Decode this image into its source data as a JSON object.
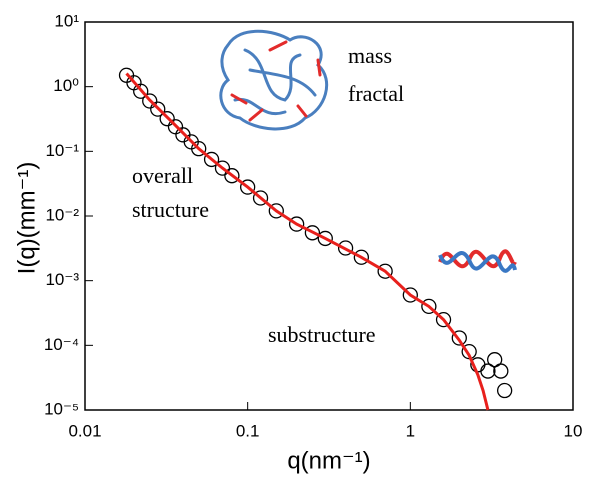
{
  "chart_data": {
    "type": "scatter",
    "x_label": "q(nm⁻¹)",
    "y_label": "I(q)(mm⁻¹)",
    "annotations": [
      "mass",
      "fractal",
      "overall",
      "structure",
      "substructure"
    ],
    "x_scale": "log",
    "y_scale": "log",
    "xlim": [
      0.01,
      10
    ],
    "ylim": [
      1e-05,
      10
    ],
    "xticks": [
      0.01,
      0.1,
      1,
      10
    ],
    "yticks": [
      {
        "value": 1e-05,
        "label": "10⁻⁵"
      },
      {
        "value": 0.0001,
        "label": "10⁻⁴"
      },
      {
        "value": 0.001,
        "label": "10⁻³"
      },
      {
        "value": 0.01,
        "label": "10⁻²"
      },
      {
        "value": 0.1,
        "label": "10⁻¹"
      },
      {
        "value": 1,
        "label": "10⁰"
      },
      {
        "value": 10,
        "label": "10¹"
      }
    ],
    "series": [
      {
        "type": "scatter",
        "color": "#000000",
        "x": [
          0.018,
          0.02,
          0.022,
          0.025,
          0.028,
          0.032,
          0.036,
          0.04,
          0.045,
          0.05,
          0.06,
          0.07,
          0.08,
          0.1,
          0.12,
          0.15,
          0.2,
          0.25,
          0.3,
          0.4,
          0.5,
          0.7,
          1,
          1.3,
          1.6,
          2,
          2.3,
          2.6,
          3,
          3.3,
          3.6,
          3.8
        ],
        "values": [
          1.5,
          1.15,
          0.85,
          0.6,
          0.45,
          0.32,
          0.24,
          0.18,
          0.14,
          0.11,
          0.075,
          0.055,
          0.042,
          0.028,
          0.019,
          0.012,
          0.0075,
          0.0055,
          0.0045,
          0.0032,
          0.0023,
          0.0014,
          0.0006,
          0.0004,
          0.00025,
          0.00013,
          8e-05,
          5e-05,
          4e-05,
          6e-05,
          4e-05,
          2e-05
        ]
      },
      {
        "type": "line",
        "color": "#e8201c",
        "x": [
          0.018,
          0.025,
          0.035,
          0.05,
          0.07,
          0.1,
          0.15,
          0.2,
          0.3,
          0.5,
          0.7,
          1,
          1.3,
          1.6,
          2,
          2.3,
          2.6,
          2.8,
          3.0
        ],
        "values": [
          1.6,
          0.62,
          0.27,
          0.11,
          0.055,
          0.028,
          0.012,
          0.0075,
          0.0045,
          0.0023,
          0.0014,
          0.0006,
          0.0004,
          0.00025,
          0.00012,
          7e-05,
          3.5e-05,
          2e-05,
          1e-05
        ]
      }
    ]
  }
}
